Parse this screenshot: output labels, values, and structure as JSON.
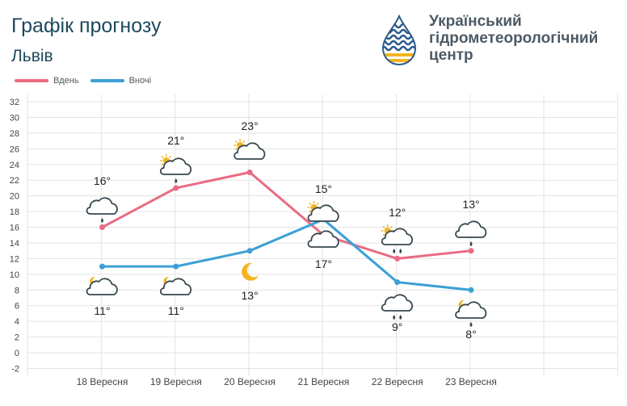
{
  "header": {
    "title": "Графік прогнозу",
    "city": "Львів"
  },
  "logo": {
    "line1": "Український",
    "line2": "гідрометеорологічний",
    "line3": "центр"
  },
  "colors": {
    "day": "#e96b83",
    "night": "#3d9fd6",
    "grid": "#e3e3e3",
    "axis_text": "#444444",
    "icon_stroke": "#37474f",
    "sun": "#f2b51f"
  },
  "chart_data": {
    "type": "line",
    "categories": [
      "18 Вересня",
      "19 Вересня",
      "20 Вересня",
      "21 Вересня",
      "22 Вересня",
      "23 Вересня"
    ],
    "series": [
      {
        "name": "Вдень",
        "values": [
          16,
          21,
          23,
          15,
          12,
          13
        ],
        "labels": [
          "16°",
          "21°",
          "23°",
          "15°",
          "12°",
          "13°"
        ],
        "icons": [
          "cloud-rain-light",
          "cloud-sun-rain",
          "cloud-sun",
          "cloud-sun",
          "cloud-sun-rain-heavy",
          "cloud-rain-light"
        ]
      },
      {
        "name": "Вночі",
        "values": [
          11,
          11,
          13,
          17,
          9,
          8
        ],
        "labels": [
          "11°",
          "11°",
          "13°",
          "17°",
          "9°",
          "8°"
        ],
        "icons": [
          "cloud-moon",
          "cloud-moon",
          "moon",
          "cloud",
          "cloud-rain-heavy",
          "cloud-moon-rain"
        ]
      }
    ],
    "y_ticks": [
      32,
      30,
      28,
      26,
      24,
      22,
      20,
      18,
      16,
      14,
      12,
      10,
      8,
      6,
      4,
      2,
      0,
      -2
    ],
    "ylim": [
      -2,
      32
    ],
    "grid": true,
    "legend": "top-left"
  }
}
